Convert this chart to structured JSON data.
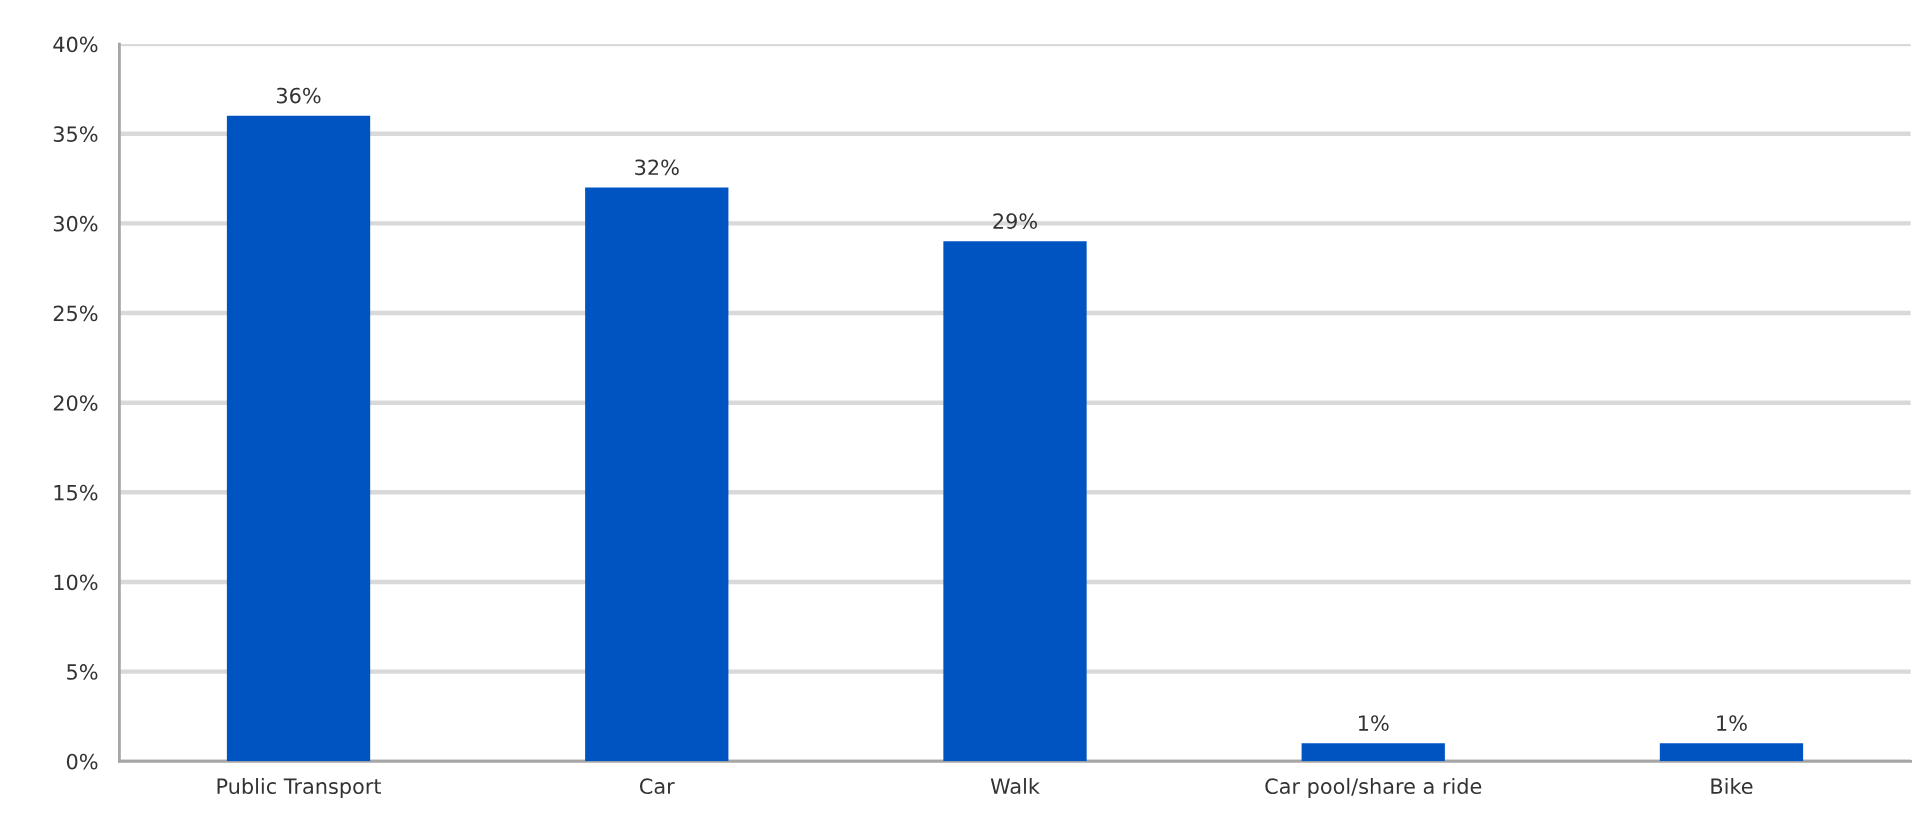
{
  "chart_data": {
    "type": "bar",
    "categories": [
      "Public Transport",
      "Car",
      "Walk",
      "Car pool/share a ride",
      "Bike"
    ],
    "values": [
      36,
      32,
      29,
      1,
      1
    ],
    "value_labels": [
      "36%",
      "32%",
      "29%",
      "1%",
      "1%"
    ],
    "color": "#0054c1",
    "ylim": [
      0,
      40
    ],
    "yticks": [
      {
        "value": 0,
        "label": "0%"
      },
      {
        "value": 5,
        "label": "5%"
      },
      {
        "value": 10,
        "label": "10%"
      },
      {
        "value": 15,
        "label": "15%"
      },
      {
        "value": 20,
        "label": "20%"
      },
      {
        "value": 25,
        "label": "25%"
      },
      {
        "value": 30,
        "label": "30%"
      },
      {
        "value": 35,
        "label": "35%"
      },
      {
        "value": 40,
        "label": "40%"
      }
    ],
    "grid": "y"
  }
}
